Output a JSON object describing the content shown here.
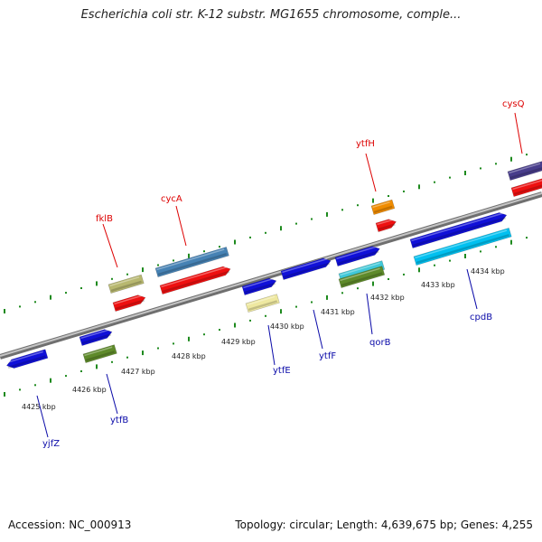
{
  "title": "Escherichia coli str. K-12 substr. MG1655 chromosome, comple...",
  "footer": {
    "accession": "Accession: NC_000913",
    "topology": "Topology: circular; Length: 4,639,675 bp; Genes: 4,255"
  },
  "colors": {
    "backbone": "#8c8c8c",
    "tick": "#1e8a1e",
    "label_top_strand": "#dd0000",
    "label_bottom_strand": "#0a0aa8"
  },
  "scale_labels": [
    "4425 kbp",
    "4426 kbp",
    "4427 kbp",
    "4428 kbp",
    "4429 kbp",
    "4430 kbp",
    "4431 kbp",
    "4432 kbp",
    "4433 kbp",
    "4434 kbp"
  ],
  "top_labels": [
    "fklB",
    "cycA",
    "ytfH",
    "cysQ"
  ],
  "bottom_labels": [
    "yjfZ",
    "ytfB",
    "ytfE",
    "ytfF",
    "qorB",
    "cpdB"
  ]
}
